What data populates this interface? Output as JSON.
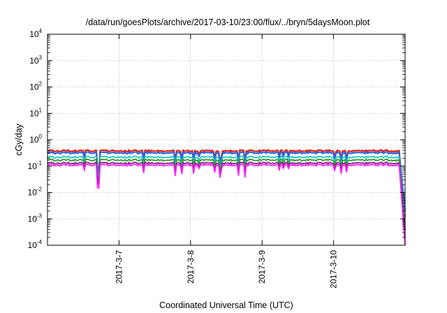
{
  "chart_data": {
    "type": "line",
    "title": "/data/run/goesPlots/archive/2017-03-10/23:00/flux/../bryn/5daysMoon.plot",
    "xlabel": "Coordinated Universal Time (UTC)",
    "ylabel": "cGy/day",
    "yscale": "log",
    "ylim": [
      0.0001,
      10000
    ],
    "xlim": [
      "2017-03-06T00:00",
      "2017-03-11T00:00"
    ],
    "grid": true,
    "y_ticks": [
      {
        "base": "10",
        "exp": "-4",
        "value": 0.0001
      },
      {
        "base": "10",
        "exp": "-3",
        "value": 0.001
      },
      {
        "base": "10",
        "exp": "-2",
        "value": 0.01
      },
      {
        "base": "10",
        "exp": "-1",
        "value": 0.1
      },
      {
        "base": "10",
        "exp": "0",
        "value": 1
      },
      {
        "base": "10",
        "exp": "1",
        "value": 10
      },
      {
        "base": "10",
        "exp": "2",
        "value": 100
      },
      {
        "base": "10",
        "exp": "3",
        "value": 1000
      },
      {
        "base": "10",
        "exp": "4",
        "value": 10000
      }
    ],
    "x_ticks": [
      {
        "label": "2017-3-7",
        "value": "2017-03-07T00:00"
      },
      {
        "label": "2017-3-8",
        "value": "2017-03-08T00:00"
      },
      {
        "label": "2017-3-9",
        "value": "2017-03-09T00:00"
      },
      {
        "label": "2017-3-10",
        "value": "2017-03-10T00:00"
      }
    ],
    "series": [
      {
        "color": "#e0201a",
        "level": 0.38,
        "end_value": 0.0012
      },
      {
        "color": "#2e60e0",
        "level": 0.32,
        "end_value": 0.002
      },
      {
        "color": "#20c8c0",
        "level": 0.22,
        "end_value": 0.0006
      },
      {
        "color": "#2a9a2a",
        "level": 0.17,
        "end_value": 0.0004
      },
      {
        "color": "#8a1a8a",
        "level": 0.13,
        "end_value": 0.0002
      },
      {
        "color": "#ff20ff",
        "level": 0.11,
        "end_value": 0.0001
      }
    ],
    "notable_dips": [
      {
        "time": "2017-03-06T17:00",
        "series_color": "#ff20ff",
        "value": 0.015
      }
    ]
  }
}
